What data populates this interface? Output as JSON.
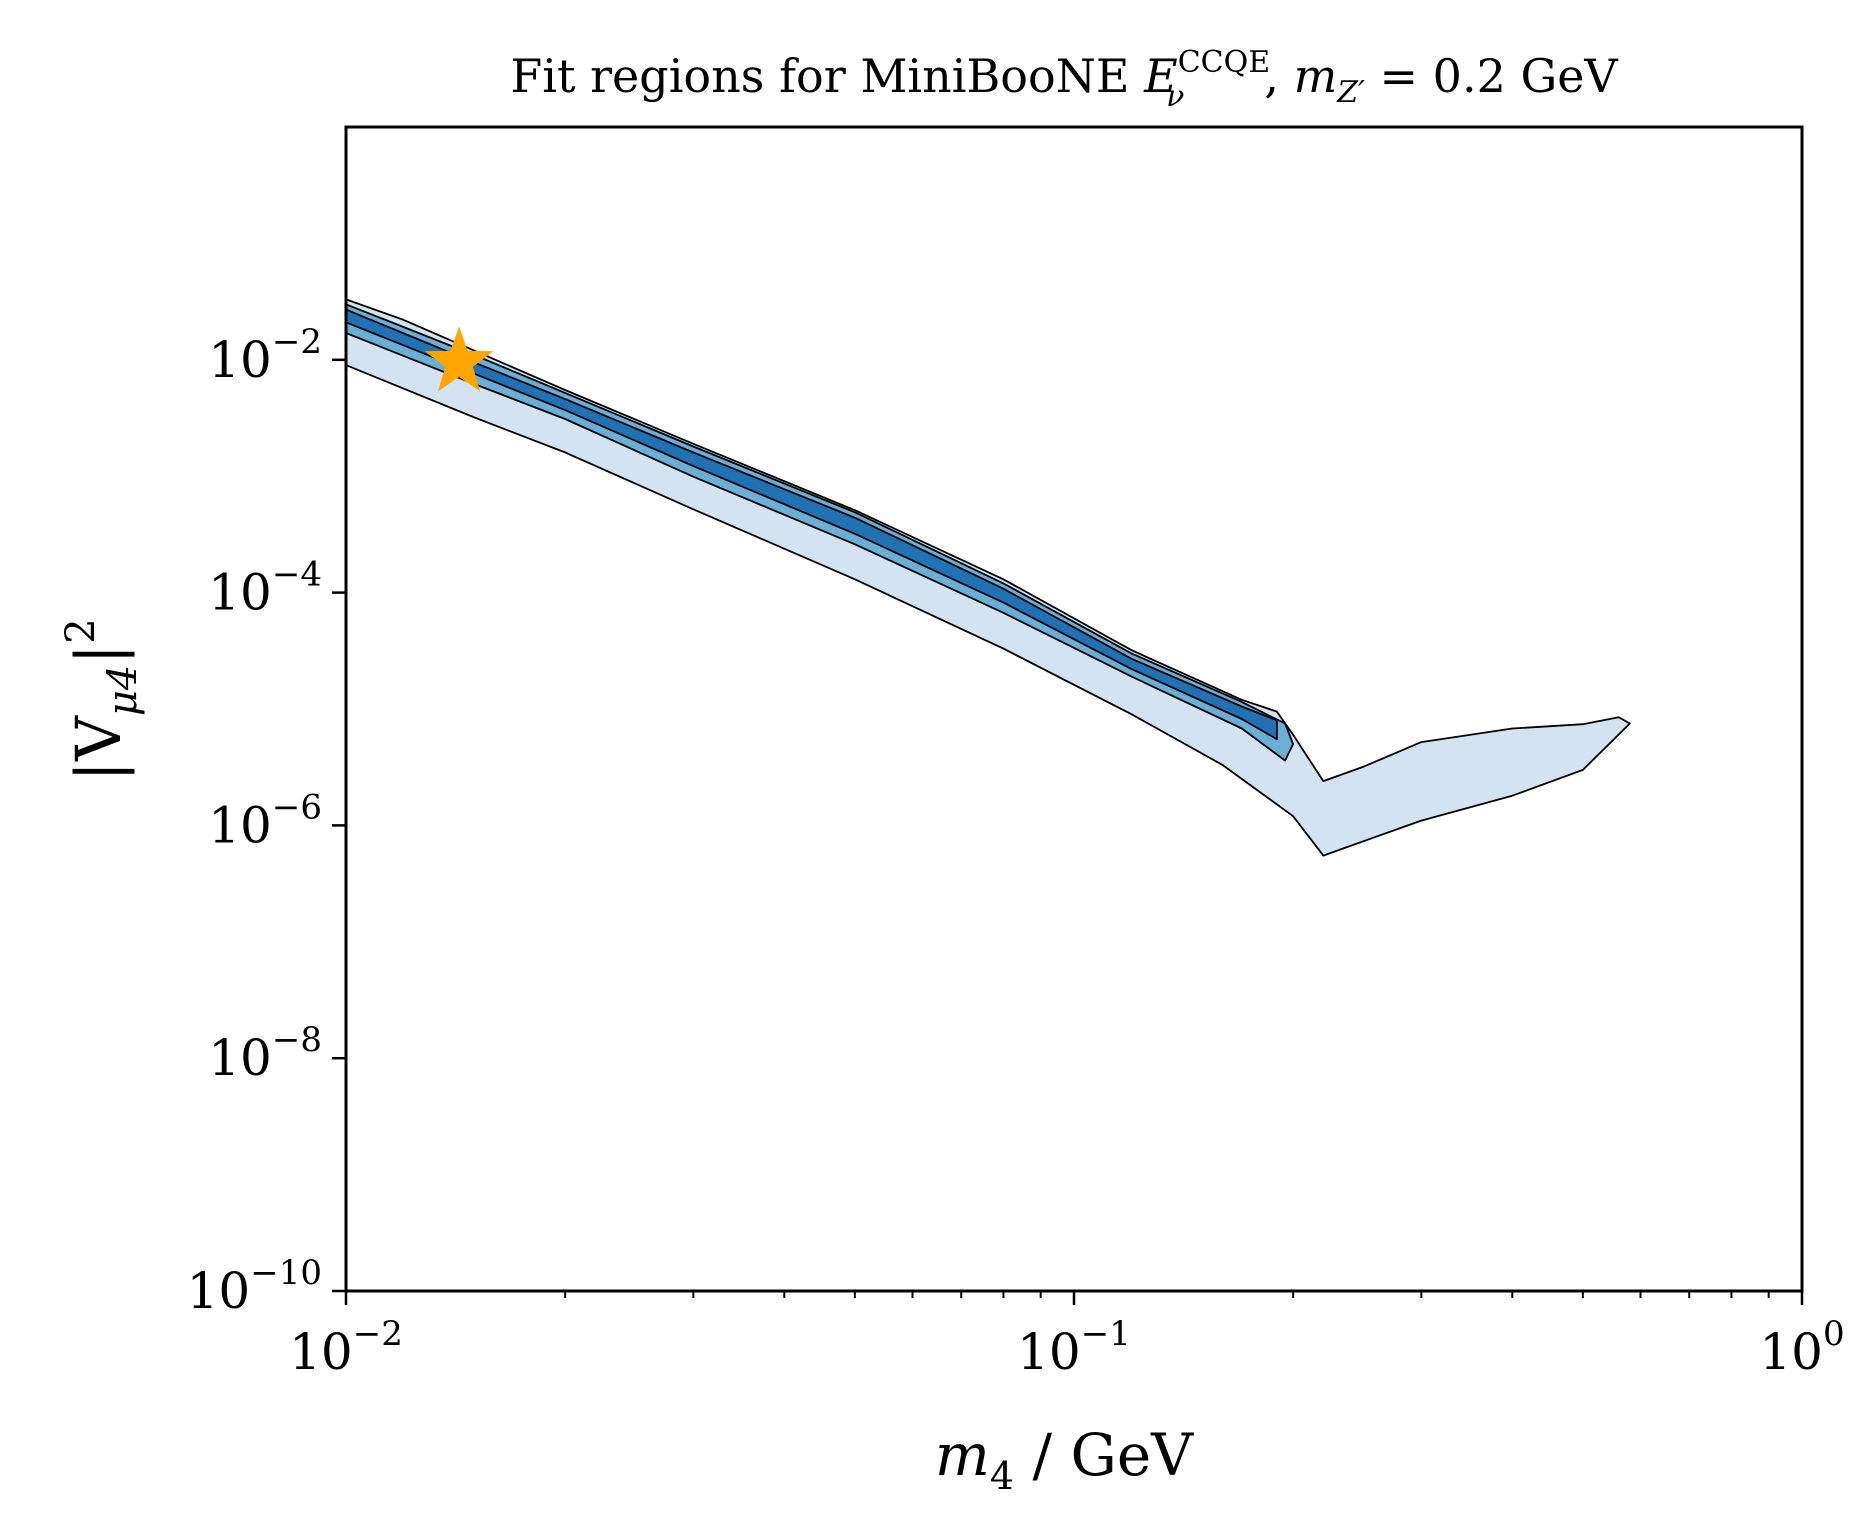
{
  "chart_data": {
    "type": "contour",
    "title": {
      "prefix": "Fit regions for MiniBooNE ",
      "E": "E",
      "E_sub": "ν",
      "E_sup": "CCQE",
      "sep": ", ",
      "m": "m",
      "m_sub": "Z′",
      "suffix": " = 0.2 GeV"
    },
    "xlabel": {
      "m": "m",
      "sub": "4",
      "rest": " / GeV"
    },
    "ylabel": {
      "text": "|V",
      "sub": "μ4",
      "close": "|",
      "sup": "2"
    },
    "x_scale": "log",
    "y_scale": "log",
    "xlim": [
      0.01,
      1
    ],
    "ylim": [
      1e-10,
      1
    ],
    "x_ticks": [
      {
        "value": 0.01,
        "base": "10",
        "exp": "−2"
      },
      {
        "value": 0.1,
        "base": "10",
        "exp": "−1"
      },
      {
        "value": 1,
        "base": "10",
        "exp": "0"
      }
    ],
    "y_ticks": [
      {
        "value": 1e-10,
        "base": "10",
        "exp": "−10"
      },
      {
        "value": 1e-08,
        "base": "10",
        "exp": "−8"
      },
      {
        "value": 1e-06,
        "base": "10",
        "exp": "−6"
      },
      {
        "value": 0.0001,
        "base": "10",
        "exp": "−4"
      },
      {
        "value": 0.01,
        "base": "10",
        "exp": "−2"
      }
    ],
    "grid": false,
    "colors": {
      "level1": "#d3e3f2",
      "level2": "#6baed6",
      "level3": "#2171b5",
      "edge": "#000000",
      "best_fit": "#ffa500"
    },
    "regions": [
      {
        "level": 1,
        "upper": [
          [
            0.01,
            0.033
          ],
          [
            0.012,
            0.022
          ],
          [
            0.015,
            0.012
          ],
          [
            0.02,
            0.0055
          ],
          [
            0.03,
            0.0019
          ],
          [
            0.05,
            0.00051
          ],
          [
            0.08,
            0.00013
          ],
          [
            0.12,
            3.2e-05
          ],
          [
            0.17,
            1.2e-05
          ],
          [
            0.19,
            9.5e-06
          ],
          [
            0.2,
            6e-06
          ],
          [
            0.22,
            2.4e-06
          ],
          [
            0.25,
            3.2e-06
          ],
          [
            0.3,
            5.2e-06
          ],
          [
            0.4,
            6.8e-06
          ],
          [
            0.5,
            7.4e-06
          ],
          [
            0.56,
            8.5e-06
          ],
          [
            0.58,
            7.5e-06
          ]
        ],
        "lower": [
          [
            0.01,
            0.009
          ],
          [
            0.015,
            0.0032
          ],
          [
            0.02,
            0.0016
          ],
          [
            0.03,
            0.00052
          ],
          [
            0.05,
            0.00013
          ],
          [
            0.08,
            3.3e-05
          ],
          [
            0.12,
            9e-06
          ],
          [
            0.16,
            3.3e-06
          ],
          [
            0.2,
            1.2e-06
          ],
          [
            0.22,
            5.5e-07
          ],
          [
            0.26,
            8e-07
          ],
          [
            0.3,
            1.1e-06
          ],
          [
            0.4,
            1.8e-06
          ],
          [
            0.5,
            3e-06
          ],
          [
            0.58,
            7.5e-06
          ]
        ]
      },
      {
        "level": 2,
        "upper": [
          [
            0.01,
            0.03
          ],
          [
            0.015,
            0.011
          ],
          [
            0.02,
            0.0052
          ],
          [
            0.03,
            0.0018
          ],
          [
            0.05,
            0.00049
          ],
          [
            0.08,
            0.00012
          ],
          [
            0.12,
            3e-05
          ],
          [
            0.17,
            1.15e-05
          ],
          [
            0.195,
            7.5e-06
          ],
          [
            0.2,
            5e-06
          ]
        ],
        "lower": [
          [
            0.01,
            0.017
          ],
          [
            0.015,
            0.0062
          ],
          [
            0.02,
            0.0031
          ],
          [
            0.03,
            0.00099
          ],
          [
            0.05,
            0.00026
          ],
          [
            0.08,
            6.7e-05
          ],
          [
            0.12,
            1.9e-05
          ],
          [
            0.17,
            6.8e-06
          ],
          [
            0.195,
            3.6e-06
          ],
          [
            0.2,
            5e-06
          ]
        ]
      },
      {
        "level": 3,
        "upper": [
          [
            0.01,
            0.027
          ],
          [
            0.015,
            0.0095
          ],
          [
            0.02,
            0.0046
          ],
          [
            0.03,
            0.0016
          ],
          [
            0.05,
            0.00044
          ],
          [
            0.08,
            0.000108
          ],
          [
            0.12,
            2.7e-05
          ],
          [
            0.17,
            1.05e-05
          ],
          [
            0.19,
            8e-06
          ]
        ],
        "lower": [
          [
            0.01,
            0.021
          ],
          [
            0.015,
            0.0076
          ],
          [
            0.02,
            0.0037
          ],
          [
            0.03,
            0.00122
          ],
          [
            0.05,
            0.00032
          ],
          [
            0.08,
            8.2e-05
          ],
          [
            0.12,
            2.2e-05
          ],
          [
            0.17,
            8.2e-06
          ],
          [
            0.19,
            5.5e-06
          ]
        ]
      }
    ],
    "best_fit": {
      "m4": 0.0143,
      "V2": 0.0095
    }
  }
}
